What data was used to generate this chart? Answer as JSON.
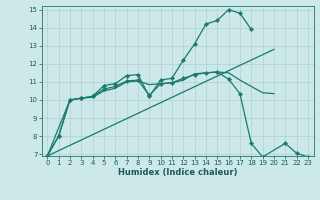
{
  "xlabel": "Humidex (Indice chaleur)",
  "bg_color": "#cce8e8",
  "grid_color": "#b0d0d0",
  "line_color": "#1a7a6e",
  "xlim": [
    -0.5,
    23.5
  ],
  "ylim": [
    6.9,
    15.2
  ],
  "xticks": [
    0,
    1,
    2,
    3,
    4,
    5,
    6,
    7,
    8,
    9,
    10,
    11,
    12,
    13,
    14,
    15,
    16,
    17,
    18,
    19,
    20,
    21,
    22,
    23
  ],
  "yticks": [
    7,
    8,
    9,
    10,
    11,
    12,
    13,
    14,
    15
  ],
  "line1_x": [
    0,
    1,
    2,
    3,
    4,
    5,
    6,
    7,
    8,
    9,
    10,
    11,
    12,
    13,
    14,
    15,
    16,
    17,
    18
  ],
  "line1_y": [
    6.9,
    8.0,
    10.0,
    10.1,
    10.2,
    10.8,
    10.9,
    11.35,
    11.4,
    10.2,
    11.1,
    11.2,
    12.2,
    13.1,
    14.2,
    14.4,
    15.0,
    14.8,
    13.9
  ],
  "line2_x": [
    0,
    1,
    2,
    3,
    4,
    5,
    6,
    7,
    8,
    9,
    10,
    11,
    12,
    13,
    14,
    15,
    16,
    17,
    18,
    19,
    21,
    22,
    23
  ],
  "line2_y": [
    6.9,
    8.0,
    10.0,
    10.1,
    10.2,
    10.6,
    10.75,
    11.05,
    11.1,
    10.25,
    10.9,
    10.95,
    11.2,
    11.4,
    11.5,
    11.55,
    11.15,
    10.35,
    7.6,
    6.85,
    7.6,
    7.05,
    6.85
  ],
  "line3_x": [
    0,
    2,
    3,
    4,
    5,
    6,
    7,
    8,
    9,
    10,
    11,
    12,
    13,
    14,
    15,
    16,
    17,
    18,
    19,
    20
  ],
  "line3_y": [
    6.9,
    10.0,
    10.1,
    10.15,
    10.5,
    10.65,
    11.0,
    11.05,
    10.85,
    10.9,
    10.95,
    11.1,
    11.45,
    11.5,
    11.55,
    11.5,
    11.1,
    10.75,
    10.4,
    10.35
  ],
  "line4_x": [
    0,
    20
  ],
  "line4_y": [
    6.9,
    12.8
  ]
}
